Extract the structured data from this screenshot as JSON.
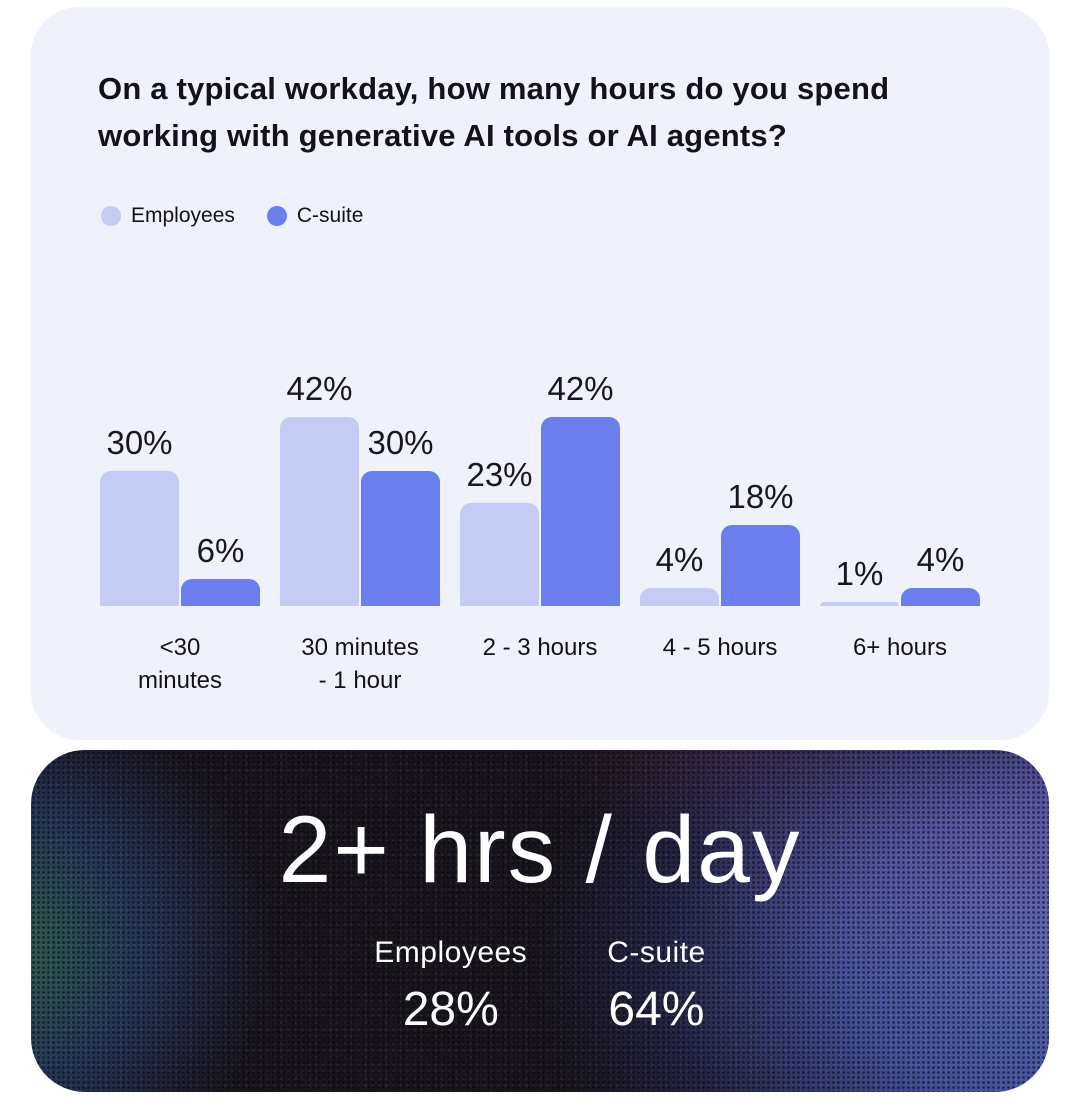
{
  "chart_card": {
    "title": "On a typical workday, how many hours do you spend\nworking with generative AI tools or AI agents?"
  },
  "chart_data": {
    "type": "bar",
    "title": "On a typical workday, how many hours do you spend working with generative AI tools or AI agents?",
    "categories": [
      "<30\nminutes",
      "30 minutes\n- 1 hour",
      "2 - 3 hours",
      "4 - 5 hours",
      "6+ hours"
    ],
    "series": [
      {
        "name": "Employees",
        "color": "#c4ccf6",
        "values": [
          30,
          42,
          23,
          4,
          1
        ]
      },
      {
        "name": "C-suite",
        "color": "#6b7eee",
        "values": [
          6,
          30,
          42,
          18,
          4
        ]
      }
    ],
    "value_suffix": "%",
    "value_labels": true,
    "ylim": [
      0,
      45
    ],
    "grid": false,
    "legend_position": "top-left"
  },
  "summary_card": {
    "headline": "2+ hrs / day",
    "stats": [
      {
        "label": "Employees",
        "value": "28%"
      },
      {
        "label": "C-suite",
        "value": "64%"
      }
    ]
  },
  "colors": {
    "page_background": "#ffffff",
    "chart_card_background": "#eff1fb",
    "text_dark": "#15111c",
    "text_light": "#ffffff",
    "employees": "#c4ccf6",
    "c_suite": "#6b7eee",
    "summary_card_base": "#161219",
    "summary_card_blue": "#4d5ca8",
    "summary_card_green": "#347a56"
  }
}
